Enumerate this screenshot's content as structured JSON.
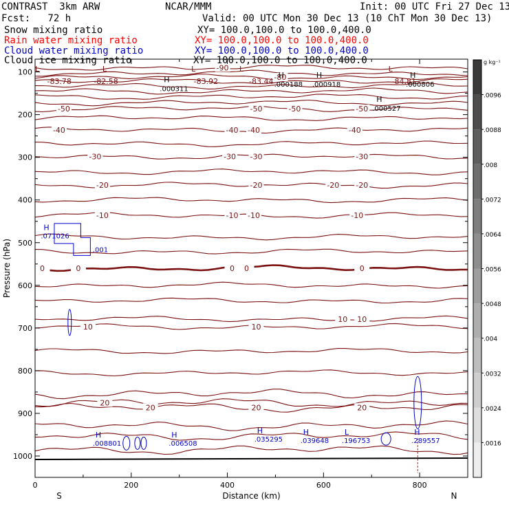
{
  "header": {
    "model": "CONTRAST  3km ARW",
    "org": "NCAR/MMM",
    "init": "Init: 00 UTC Fri 27 Dec 13",
    "fcst": "Fcst:   72 h",
    "valid": "Valid: 00 UTC Mon 30 Dec 13 (10 ChT Mon 30 Dec 13)",
    "fields": [
      {
        "name": "Snow mixing ratio",
        "xy": "XY= 100.0,100.0 to 100.0,400.0",
        "color": "#000000"
      },
      {
        "name": "Rain water mixing ratio",
        "xy": "XY= 100.0,100.0 to 100.0,400.0",
        "color": "#ff0000"
      },
      {
        "name": "Cloud water mixing ratio",
        "xy": "XY= 100.0,100.0 to 100.0,400.0",
        "color": "#0000cc"
      },
      {
        "name": "Cloud ice mixing ratio",
        "xy": "XY= 100.0,100.0 to 100.0,400.0",
        "color": "#000000"
      }
    ]
  },
  "colorbar": {
    "unit": "g kg⁻¹",
    "ticks": [
      ".0096",
      ".0088",
      ".008",
      ".0072",
      ".0064",
      ".0056",
      ".0048",
      ".004",
      ".0032",
      ".0024",
      ".0016"
    ],
    "shades": [
      "#3a3a3a",
      "#4d4d4d",
      "#5e5e5e",
      "#6e6e6e",
      "#7e7e7e",
      "#8e8e8e",
      "#9e9e9e",
      "#aeaeae",
      "#bebebe",
      "#cecece",
      "#dedede",
      "#eeeeee"
    ]
  },
  "chart_data": {
    "type": "cross-section",
    "xlabel": "Distance (km)",
    "ylabel": "Pressure (hPa)",
    "xlim": [
      0,
      900
    ],
    "ylim": [
      1050,
      70
    ],
    "xticks": [
      0,
      200,
      400,
      600,
      800
    ],
    "yticks": [
      100,
      200,
      300,
      400,
      500,
      600,
      700,
      800,
      900,
      1000
    ],
    "left_end": "S",
    "right_end": "N",
    "temperature_color": "#7a1010",
    "cloud_color": "#0000cc",
    "isotherms": [
      {
        "p": 90,
        "labels": [
          {
            "x": 390,
            "t": "-90"
          }
        ]
      },
      {
        "p": 103
      },
      {
        "p": 112,
        "labels": [
          {
            "x": 510,
            "t": "-80"
          }
        ]
      },
      {
        "p": 122
      },
      {
        "p": 133
      },
      {
        "p": 145
      },
      {
        "p": 158
      },
      {
        "p": 172
      },
      {
        "p": 186,
        "labels": [
          {
            "x": 60,
            "t": "-50"
          },
          {
            "x": 460,
            "t": "-50"
          },
          {
            "x": 540,
            "t": "-50"
          },
          {
            "x": 680,
            "t": "-50"
          }
        ]
      },
      {
        "p": 208
      },
      {
        "p": 236,
        "labels": [
          {
            "x": 50,
            "t": "-40"
          },
          {
            "x": 410,
            "t": "-40"
          },
          {
            "x": 455,
            "t": "-40"
          },
          {
            "x": 665,
            "t": "-40"
          }
        ]
      },
      {
        "p": 268
      },
      {
        "p": 298,
        "labels": [
          {
            "x": 125,
            "t": "-30"
          },
          {
            "x": 405,
            "t": "-30"
          },
          {
            "x": 460,
            "t": "-30"
          },
          {
            "x": 680,
            "t": "-30"
          }
        ]
      },
      {
        "p": 334
      },
      {
        "p": 365,
        "labels": [
          {
            "x": 140,
            "t": "-20"
          },
          {
            "x": 460,
            "t": "-20"
          },
          {
            "x": 620,
            "t": "-20"
          },
          {
            "x": 680,
            "t": "-20"
          }
        ]
      },
      {
        "p": 400
      },
      {
        "p": 436,
        "labels": [
          {
            "x": 140,
            "t": "-10"
          },
          {
            "x": 410,
            "t": "-10"
          },
          {
            "x": 455,
            "t": "-10"
          },
          {
            "x": 670,
            "t": "-10"
          }
        ]
      },
      {
        "p": 487
      },
      {
        "p": 521
      },
      {
        "p": 560,
        "thick": true,
        "labels": [
          {
            "x": 15,
            "t": "0"
          },
          {
            "x": 90,
            "t": "0"
          },
          {
            "x": 410,
            "t": "0"
          },
          {
            "x": 440,
            "t": "0"
          },
          {
            "x": 680,
            "t": "0"
          }
        ]
      },
      {
        "p": 600
      },
      {
        "p": 636
      },
      {
        "p": 679,
        "labels": [
          {
            "x": 640,
            "t": "10"
          },
          {
            "x": 680,
            "t": "10"
          }
        ]
      },
      {
        "p": 697,
        "labels": [
          {
            "x": 110,
            "t": "10"
          },
          {
            "x": 460,
            "t": "10"
          }
        ]
      },
      {
        "p": 754
      },
      {
        "p": 805
      },
      {
        "p": 854
      },
      {
        "p": 875,
        "labels": [
          {
            "x": 145,
            "t": "20"
          }
        ]
      },
      {
        "p": 886,
        "labels": [
          {
            "x": 240,
            "t": "20"
          },
          {
            "x": 460,
            "t": "20"
          },
          {
            "x": 680,
            "t": "20"
          }
        ]
      },
      {
        "p": 929
      },
      {
        "p": 953
      },
      {
        "p": 985
      }
    ],
    "top_row_labels": [
      {
        "x": 0,
        "t": "L"
      },
      {
        "x": 25,
        "t": "-83.78"
      },
      {
        "x": 140,
        "t": "L"
      },
      {
        "x": 122,
        "t": "-82.58"
      },
      {
        "x": 325,
        "t": "L"
      },
      {
        "x": 330,
        "t": "-83.92"
      },
      {
        "x": 425,
        "t": "L"
      },
      {
        "x": 445,
        "t": "-83.44"
      },
      {
        "x": 735,
        "t": "L"
      },
      {
        "x": 742,
        "t": "-84.81"
      }
    ],
    "highs": [
      {
        "x": 268,
        "p": 127,
        "label": ".000311"
      },
      {
        "x": 506,
        "p": 117,
        "label": ".000188"
      },
      {
        "x": 585,
        "p": 117,
        "label": ".000918"
      },
      {
        "x": 780,
        "p": 117,
        "label": ".000806"
      },
      {
        "x": 710,
        "p": 173,
        "label": ".000527"
      }
    ],
    "cloud_water_labels": [
      {
        "x": 12,
        "p": 487,
        "h": "H",
        "t": ".071026"
      },
      {
        "x": 120,
        "p": 519,
        "t": ".001"
      },
      {
        "x": 120,
        "p": 973,
        "h": "H",
        "t": ".008801"
      },
      {
        "x": 278,
        "p": 973,
        "h": "H",
        "t": ".006508"
      },
      {
        "x": 456,
        "p": 963,
        "h": "H",
        "t": ".035295"
      },
      {
        "x": 552,
        "p": 966,
        "h": "H",
        "t": ".039648"
      },
      {
        "x": 638,
        "p": 966,
        "h": "L",
        "t": ".196753"
      },
      {
        "x": 783,
        "p": 966,
        "h": "H",
        "t": ".289557"
      }
    ],
    "surface_p": 1008
  }
}
